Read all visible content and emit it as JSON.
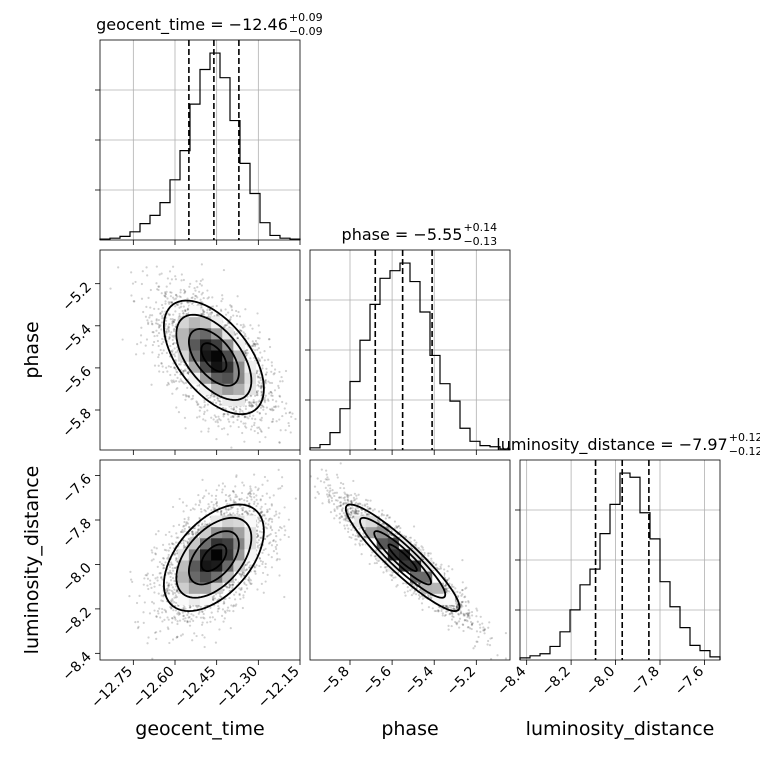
{
  "chart_data": {
    "type": "corner",
    "parameters": [
      "geocent_time",
      "phase",
      "luminosity_distance"
    ],
    "titles": [
      {
        "param": "geocent_time",
        "prefix": "geocent_time = −12.46",
        "plus": "+0.09",
        "minus": "−0.09"
      },
      {
        "param": "phase",
        "prefix": "phase = −5.55",
        "plus": "+0.14",
        "minus": "−0.13"
      },
      {
        "param": "luminosity_distance",
        "prefix": "luminosity_distance = −7.97",
        "plus": "+0.12",
        "minus": "−0.12"
      }
    ],
    "axes": {
      "geocent_time": {
        "range": [
          -12.87,
          -12.15
        ],
        "ticks": [
          -12.75,
          -12.6,
          -12.45,
          -12.3,
          -12.15
        ],
        "tick_labels": [
          "−12.75",
          "−12.60",
          "−12.45",
          "−12.30",
          "−12.15"
        ],
        "quantiles": [
          -12.55,
          -12.46,
          -12.37
        ]
      },
      "phase": {
        "range": [
          -5.99,
          -5.04
        ],
        "ticks": [
          -5.8,
          -5.6,
          -5.4,
          -5.2
        ],
        "tick_labels": [
          "−5.8",
          "−5.6",
          "−5.4",
          "−5.2"
        ],
        "quantiles": [
          -5.68,
          -5.55,
          -5.41
        ]
      },
      "luminosity_distance": {
        "range": [
          -8.43,
          -7.53
        ],
        "ticks": [
          -8.4,
          -8.2,
          -8.0,
          -7.8,
          -7.6
        ],
        "tick_labels": [
          "−8.4",
          "−8.2",
          "−8.0",
          "−7.8",
          "−7.6"
        ],
        "quantiles": [
          -8.09,
          -7.97,
          -7.85
        ]
      }
    },
    "histograms": {
      "geocent_time": {
        "bins": [
          -12.87,
          -12.834,
          -12.798,
          -12.762,
          -12.726,
          -12.69,
          -12.654,
          -12.618,
          -12.582,
          -12.546,
          -12.51,
          -12.474,
          -12.438,
          -12.402,
          -12.366,
          -12.33,
          -12.294,
          -12.258,
          -12.222,
          -12.186,
          -12.15
        ],
        "counts": [
          1,
          2,
          4,
          9,
          18,
          27,
          41,
          66,
          98,
          149,
          187,
          205,
          178,
          131,
          84,
          51,
          19,
          5,
          2,
          1
        ]
      },
      "phase": {
        "bins": [
          -5.99,
          -5.9425,
          -5.895,
          -5.8475,
          -5.8,
          -5.7525,
          -5.705,
          -5.6575,
          -5.61,
          -5.5625,
          -5.515,
          -5.4675,
          -5.42,
          -5.3725,
          -5.325,
          -5.2775,
          -5.23,
          -5.1825,
          -5.135,
          -5.0875,
          -5.04
        ],
        "counts": [
          2,
          5,
          16,
          38,
          63,
          101,
          134,
          158,
          165,
          172,
          155,
          127,
          87,
          61,
          45,
          20,
          8,
          4,
          3,
          1
        ]
      },
      "luminosity_distance": {
        "bins": [
          -8.43,
          -8.385,
          -8.34,
          -8.295,
          -8.25,
          -8.205,
          -8.16,
          -8.115,
          -8.07,
          -8.025,
          -7.98,
          -7.935,
          -7.89,
          -7.845,
          -7.8,
          -7.755,
          -7.71,
          -7.665,
          -7.62,
          -7.575,
          -7.53
        ],
        "counts": [
          2,
          4,
          6,
          13,
          27,
          48,
          72,
          87,
          121,
          149,
          179,
          175,
          141,
          116,
          75,
          51,
          31,
          14,
          9,
          3
        ]
      }
    },
    "pairs": [
      {
        "x": "geocent_time",
        "y": "phase",
        "center": [
          -12.46,
          -5.55
        ],
        "sigma": [
          0.09,
          0.135
        ],
        "rho": -0.55
      },
      {
        "x": "geocent_time",
        "y": "luminosity_distance",
        "center": [
          -12.46,
          -7.97
        ],
        "sigma": [
          0.09,
          0.12
        ],
        "rho": 0.5
      },
      {
        "x": "phase",
        "y": "luminosity_distance",
        "center": [
          -5.55,
          -7.97
        ],
        "sigma": [
          0.135,
          0.12
        ],
        "rho": -0.92
      }
    ],
    "contour_levels_sigma": [
      0.5,
      1.0,
      1.5,
      2.0
    ],
    "grid": true
  }
}
